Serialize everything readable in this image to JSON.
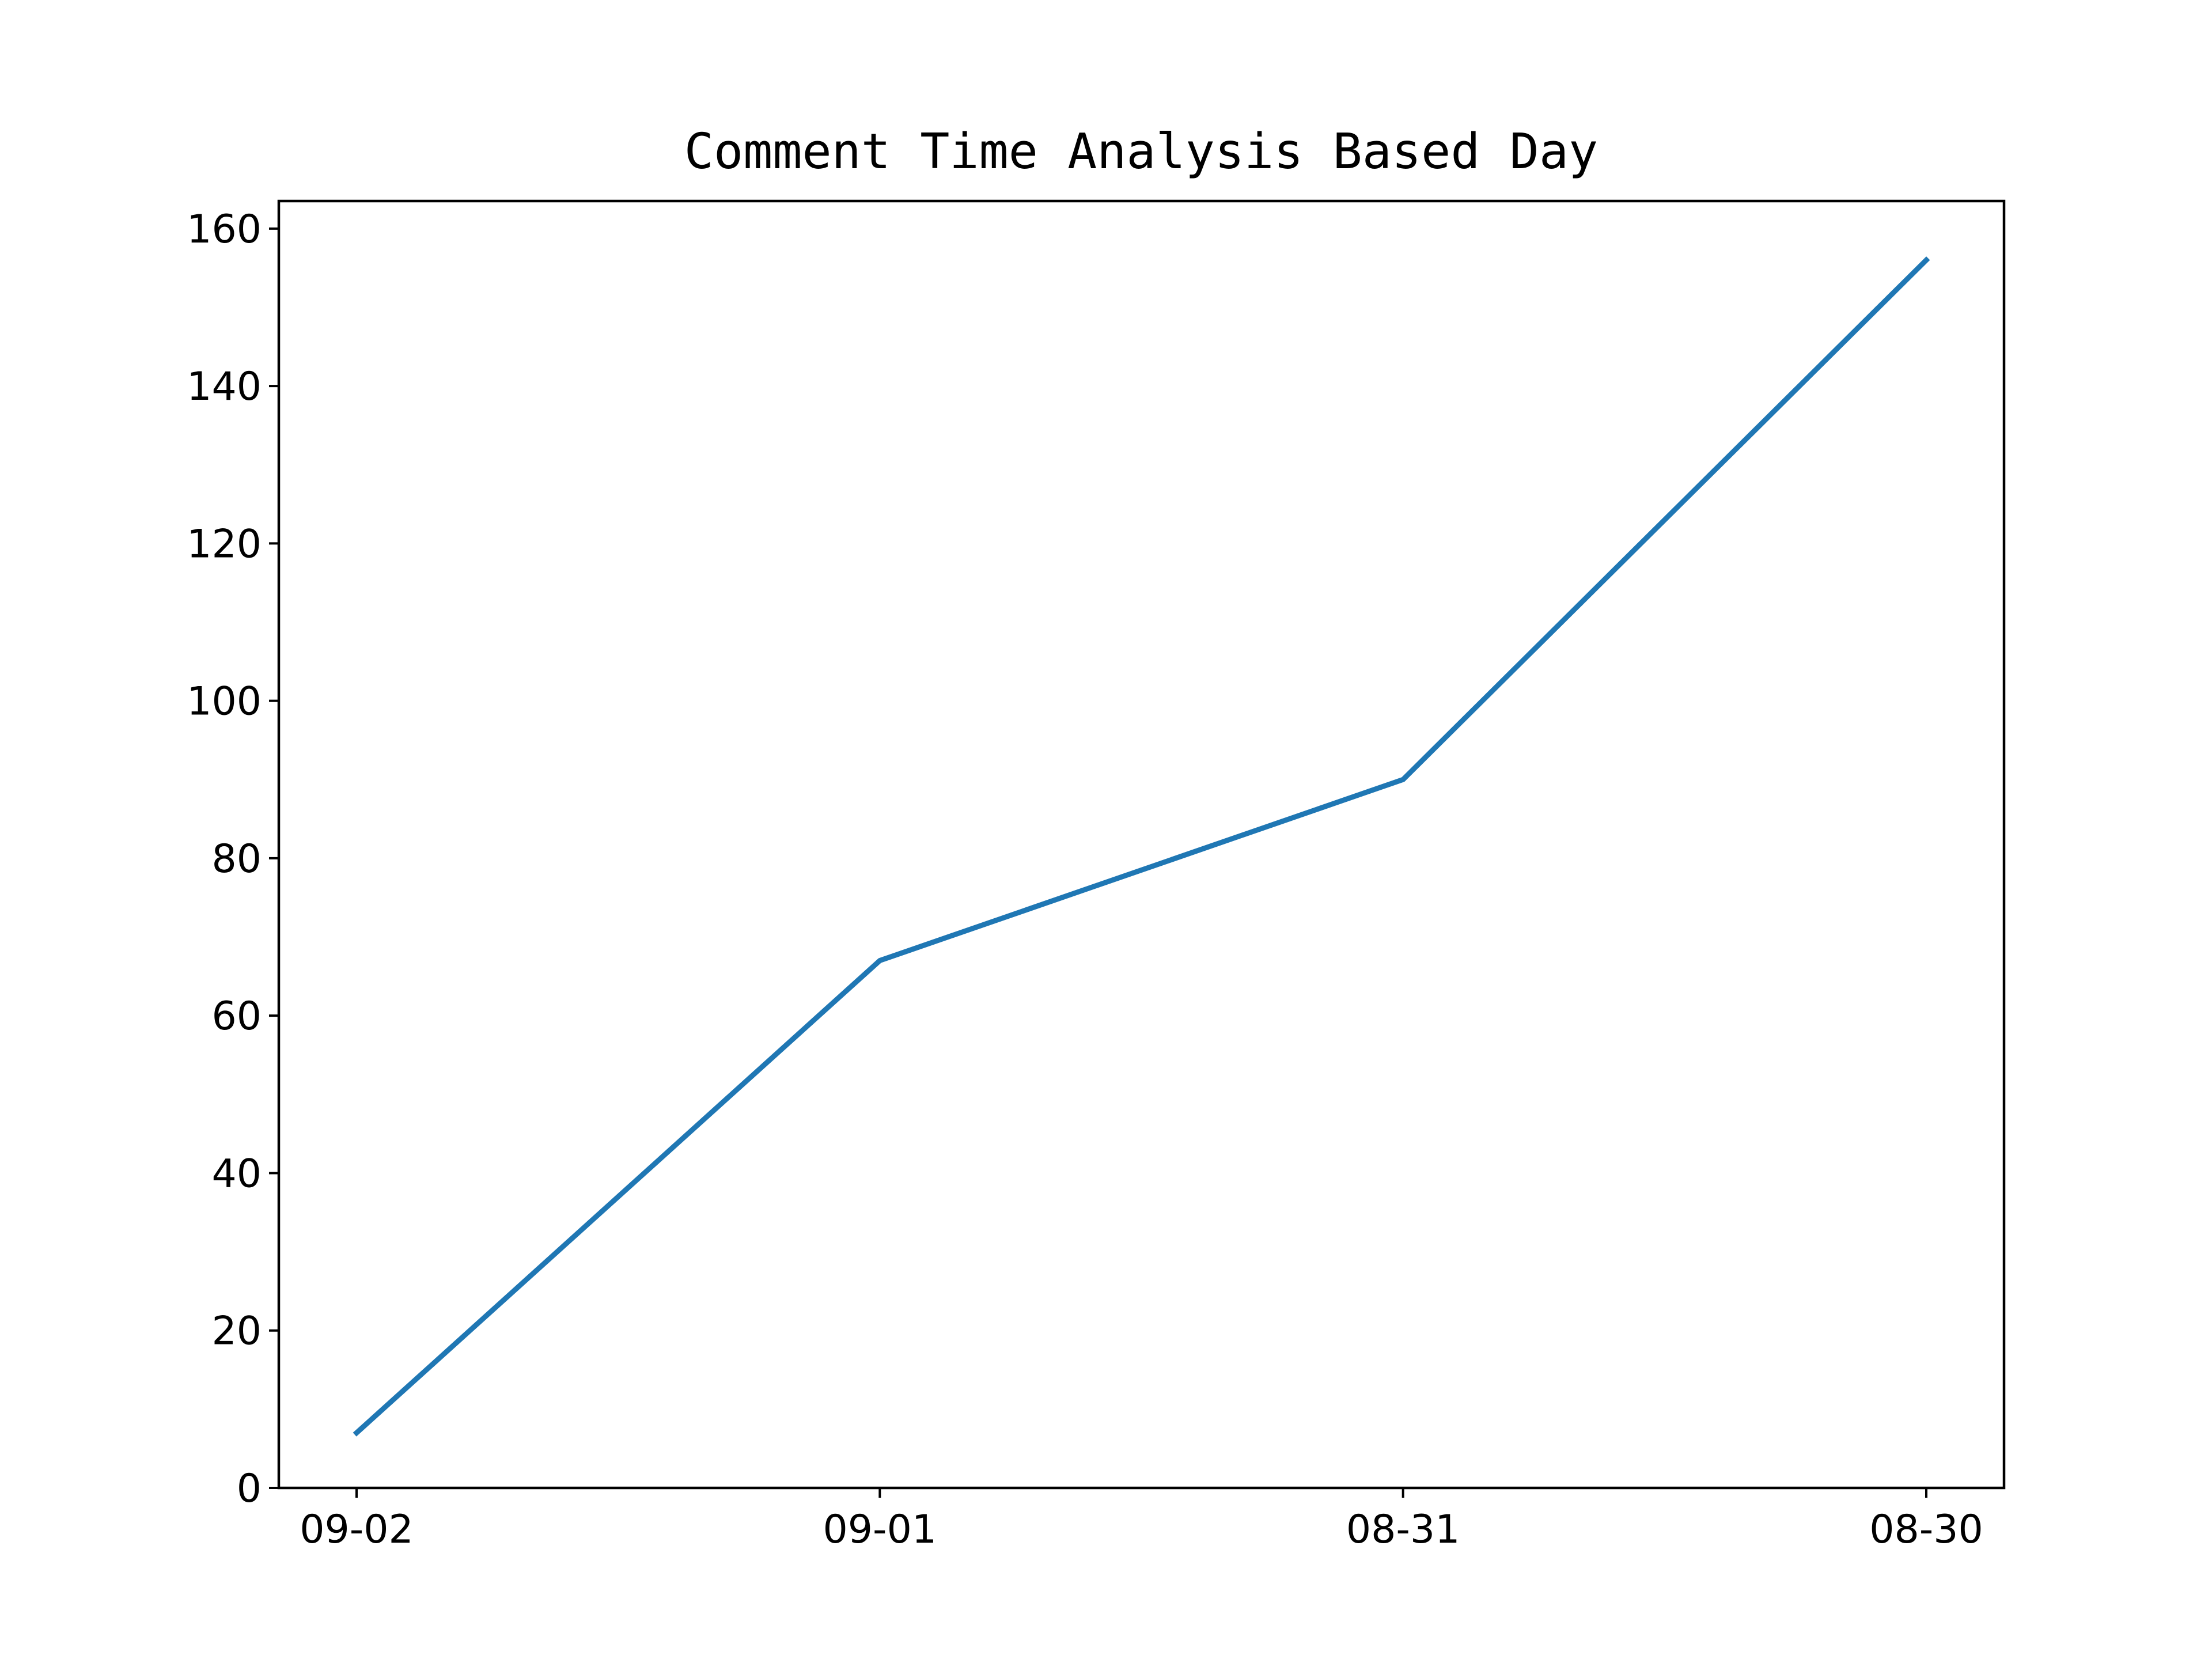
{
  "chart_data": {
    "type": "line",
    "title": "Comment Time Analysis Based Day",
    "xlabel": "",
    "ylabel": "",
    "categories": [
      "09-02",
      "09-01",
      "08-31",
      "08-30"
    ],
    "series": [
      {
        "values": [
          7,
          67,
          90,
          156
        ],
        "color": "#1f77b4"
      }
    ],
    "ylim": [
      0,
      163.5
    ],
    "yticks": [
      0,
      20,
      40,
      60,
      80,
      100,
      120,
      140,
      160
    ],
    "grid": false,
    "legend": "none"
  }
}
